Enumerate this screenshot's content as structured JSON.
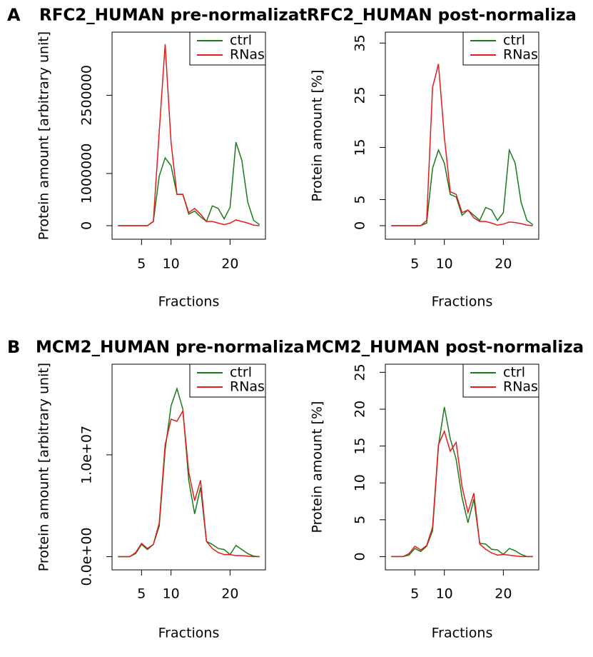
{
  "panels": [
    "A",
    "B"
  ],
  "chart_data": [
    {
      "type": "line",
      "title": "RFC2_HUMAN pre-normalizat",
      "x_label": "Fractions",
      "y_label": "Protein amount [arbitrary unit]",
      "x": [
        1,
        2,
        3,
        4,
        5,
        6,
        7,
        8,
        9,
        10,
        11,
        12,
        13,
        14,
        15,
        16,
        17,
        18,
        19,
        20,
        21,
        22,
        23,
        24,
        25
      ],
      "xlim": [
        0,
        26
      ],
      "xticks": [
        5,
        10,
        20
      ],
      "ylim": [
        -260000,
        3710000
      ],
      "yticks": [
        0,
        1000000,
        2500000
      ],
      "legend": "topright",
      "series": [
        {
          "name": "ctrl",
          "color": "#1a7a1a",
          "values": [
            0,
            0,
            0,
            0,
            0,
            0,
            80000,
            950000,
            1300000,
            1150000,
            600000,
            600000,
            220000,
            280000,
            170000,
            80000,
            380000,
            330000,
            130000,
            350000,
            1600000,
            1250000,
            450000,
            100000,
            20000
          ]
        },
        {
          "name": "RNas",
          "color": "#e41a1c",
          "values": [
            0,
            0,
            0,
            0,
            0,
            0,
            80000,
            1800000,
            3480000,
            1600000,
            600000,
            600000,
            250000,
            330000,
            220000,
            80000,
            80000,
            50000,
            20000,
            50000,
            110000,
            80000,
            50000,
            10000,
            0
          ]
        }
      ]
    },
    {
      "type": "line",
      "title": "RFC2_HUMAN post-normaliza",
      "x_label": "Fractions",
      "y_label": "Protein amount [%]",
      "x": [
        1,
        2,
        3,
        4,
        5,
        6,
        7,
        8,
        9,
        10,
        11,
        12,
        13,
        14,
        15,
        16,
        17,
        18,
        19,
        20,
        21,
        22,
        23,
        24,
        25
      ],
      "xlim": [
        0,
        26
      ],
      "xticks": [
        5,
        10,
        20
      ],
      "ylim": [
        -2.6,
        37.1
      ],
      "yticks": [
        0,
        5,
        15,
        25,
        35
      ],
      "legend": "topright",
      "series": [
        {
          "name": "ctrl",
          "color": "#1a7a1a",
          "values": [
            0,
            0,
            0,
            0,
            0,
            0,
            0.5,
            11,
            14.5,
            12,
            6,
            5.5,
            2,
            3,
            2,
            1,
            3.5,
            3,
            1,
            2.5,
            14.5,
            12,
            4.5,
            1,
            0.2
          ]
        },
        {
          "name": "RNas",
          "color": "#e41a1c",
          "values": [
            0,
            0,
            0,
            0,
            0,
            0,
            1,
            26.5,
            31,
            17,
            6.5,
            6,
            2.5,
            3,
            1.5,
            0.8,
            0.8,
            0.5,
            0.1,
            0.3,
            0.7,
            0.6,
            0.4,
            0.1,
            0
          ]
        }
      ]
    },
    {
      "type": "line",
      "title": "MCM2_HUMAN pre-normaliza",
      "x_label": "Fractions",
      "y_label": "Protein amount [arbitrary unit]",
      "x": [
        1,
        2,
        3,
        4,
        5,
        6,
        7,
        8,
        9,
        10,
        11,
        12,
        13,
        14,
        15,
        16,
        17,
        18,
        19,
        20,
        21,
        22,
        23,
        24,
        25
      ],
      "xlim": [
        0,
        26
      ],
      "xticks": [
        5,
        10,
        20
      ],
      "ylim": [
        -1300000,
        18900000
      ],
      "yticks": [
        {
          "value": 0,
          "label": "0.0e+00"
        },
        {
          "value": 10000000,
          "label": "1.0e+07"
        }
      ],
      "legend": "topright",
      "series": [
        {
          "name": "ctrl",
          "color": "#1a7a1a",
          "values": [
            0,
            0,
            0,
            300000,
            1200000,
            700000,
            1200000,
            3000000,
            10500000,
            14800000,
            16500000,
            14500000,
            7500000,
            4200000,
            6800000,
            1500000,
            1200000,
            800000,
            700000,
            200000,
            1100000,
            700000,
            300000,
            50000,
            0
          ]
        },
        {
          "name": "RNas",
          "color": "#e41a1c",
          "values": [
            0,
            0,
            0,
            400000,
            1300000,
            800000,
            1200000,
            3300000,
            11000000,
            13500000,
            13300000,
            14300000,
            8300000,
            5500000,
            7500000,
            1500000,
            800000,
            400000,
            200000,
            200000,
            100000,
            100000,
            50000,
            0,
            0
          ]
        }
      ]
    },
    {
      "type": "line",
      "title": "MCM2_HUMAN post-normaliza",
      "x_label": "Fractions",
      "y_label": "Protein amount [%]",
      "x": [
        1,
        2,
        3,
        4,
        5,
        6,
        7,
        8,
        9,
        10,
        11,
        12,
        13,
        14,
        15,
        16,
        17,
        18,
        19,
        20,
        21,
        22,
        23,
        24,
        25
      ],
      "xlim": [
        0,
        26
      ],
      "xticks": [
        5,
        10,
        20
      ],
      "ylim": [
        -1.8,
        26.1
      ],
      "yticks": [
        0,
        5,
        10,
        15,
        20,
        25
      ],
      "legend": "topright",
      "series": [
        {
          "name": "ctrl",
          "color": "#1a7a1a",
          "values": [
            0,
            0,
            0,
            0.2,
            1.1,
            0.7,
            1.4,
            3.5,
            15,
            20.3,
            16,
            13.2,
            8,
            4.6,
            7.8,
            1.8,
            1.7,
            1,
            0.9,
            0.3,
            1.1,
            0.8,
            0.3,
            0,
            0
          ]
        },
        {
          "name": "RNas",
          "color": "#e41a1c",
          "values": [
            0,
            0,
            0,
            0.4,
            1.4,
            0.9,
            1.5,
            4,
            15.2,
            17,
            14.3,
            15.5,
            9.5,
            6,
            8.6,
            1.7,
            1,
            0.5,
            0.2,
            0.3,
            0.2,
            0.1,
            0,
            0,
            0
          ]
        }
      ]
    }
  ]
}
